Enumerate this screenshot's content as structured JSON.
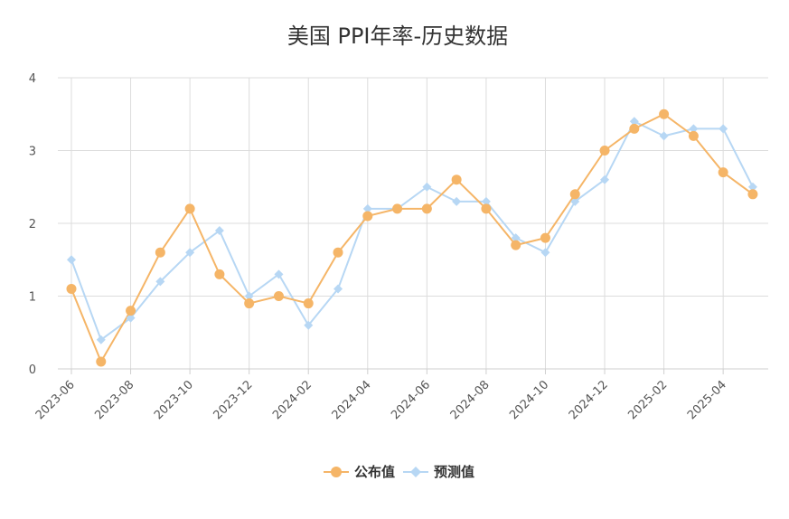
{
  "chart_data": {
    "type": "line",
    "title": "美国 PPI年率-历史数据",
    "xlabel": "",
    "ylabel": "",
    "ylim": [
      0,
      4
    ],
    "yticks": [
      "0",
      "1",
      "2",
      "3",
      "4"
    ],
    "x": [
      "2023-06",
      "2023-07",
      "2023-08",
      "2023-09",
      "2023-10",
      "2023-11",
      "2023-12",
      "2024-01",
      "2024-02",
      "2024-03",
      "2024-04",
      "2024-05",
      "2024-06",
      "2024-07",
      "2024-08",
      "2024-09",
      "2024-10",
      "2024-11",
      "2024-12",
      "2025-01",
      "2025-02",
      "2025-03",
      "2025-04",
      "2025-05"
    ],
    "xtick_labels": [
      "2023-06",
      "2023-08",
      "2023-10",
      "2023-12",
      "2024-02",
      "2024-04",
      "2024-06",
      "2024-08",
      "2024-10",
      "2024-12",
      "2025-02",
      "2025-04"
    ],
    "grid": true,
    "legend_position": "bottom",
    "series": [
      {
        "name": "公布值",
        "color": "#F5B567",
        "marker": "circle",
        "values": [
          1.1,
          0.1,
          0.8,
          1.6,
          2.2,
          1.3,
          0.9,
          1.0,
          0.9,
          1.6,
          2.1,
          2.2,
          2.2,
          2.6,
          2.2,
          1.7,
          1.8,
          2.4,
          3.0,
          3.3,
          3.5,
          3.2,
          2.7,
          2.4
        ]
      },
      {
        "name": "预测值",
        "color": "#B7D7F4",
        "marker": "diamond",
        "values": [
          1.5,
          0.4,
          0.7,
          1.2,
          1.6,
          1.9,
          1.0,
          1.3,
          0.6,
          1.1,
          2.2,
          2.2,
          2.5,
          2.3,
          2.3,
          1.8,
          1.6,
          2.3,
          2.6,
          3.4,
          3.2,
          3.3,
          3.3,
          2.5
        ]
      }
    ]
  }
}
